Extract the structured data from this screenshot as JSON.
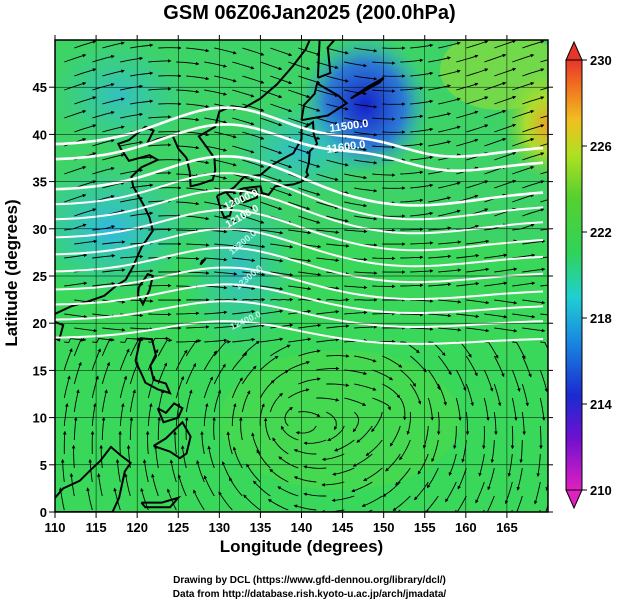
{
  "title": "GSM 06Z06Jan2025 (200.0hPa)",
  "x_axis": {
    "label": "Longitude (degrees)",
    "range": [
      110,
      170
    ],
    "ticks": [
      "110",
      "115",
      "120",
      "125",
      "130",
      "135",
      "140",
      "145",
      "150",
      "155",
      "160",
      "165"
    ]
  },
  "y_axis": {
    "label": "Latitude  (degrees)",
    "range": [
      0,
      50
    ],
    "ticks": [
      "0",
      "5",
      "10",
      "15",
      "20",
      "25",
      "30",
      "35",
      "40",
      "45"
    ]
  },
  "colorbar": {
    "range": [
      210,
      230
    ],
    "ticks": [
      "210",
      "214",
      "218",
      "222",
      "226",
      "230"
    ]
  },
  "contour_labels": [
    "11500.0",
    "11600.0",
    "12000.0",
    "12100.0",
    "12200.0",
    "12300.0",
    "12400.0"
  ],
  "credits": {
    "line1": "Drawing by DCL (https://www.gfd-dennou.org/library/dcl/)",
    "line2": "Data from http://database.rish.kyoto-u.ac.jp/arch/jmadata/"
  },
  "colors": {
    "low": "#1a2bd0",
    "mid": "#2fd35a",
    "high": "#e8352a",
    "contour": "#ffffff"
  }
}
